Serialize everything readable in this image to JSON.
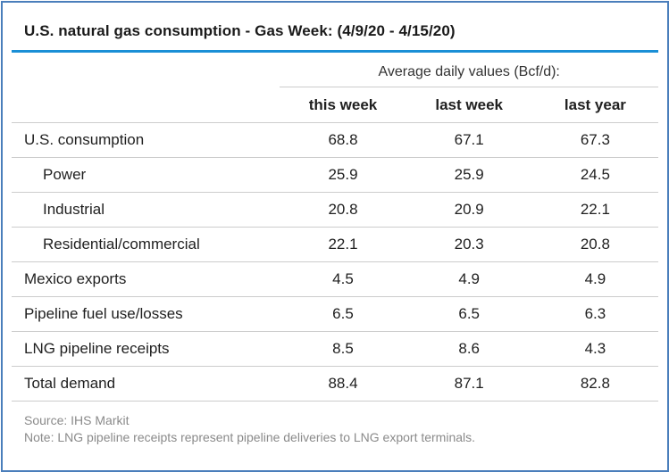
{
  "title": "U.S. natural gas consumption - Gas Week: (4/9/20 - 4/15/20)",
  "group_header": "Average daily values (Bcf/d):",
  "columns": [
    "this week",
    "last week",
    "last year"
  ],
  "rows": [
    {
      "label": "U.S. consumption",
      "values": [
        "68.8",
        "67.1",
        "67.3"
      ]
    },
    {
      "label": "Power",
      "values": [
        "25.9",
        "25.9",
        "24.5"
      ]
    },
    {
      "label": "Industrial",
      "values": [
        "20.8",
        "20.9",
        "22.1"
      ]
    },
    {
      "label": "Residential/commercial",
      "values": [
        "22.1",
        "20.3",
        "20.8"
      ]
    },
    {
      "label": "Mexico exports",
      "values": [
        "4.5",
        "4.9",
        "4.9"
      ]
    },
    {
      "label": "Pipeline fuel use/losses",
      "values": [
        "6.5",
        "6.5",
        "6.3"
      ]
    },
    {
      "label": "LNG pipeline receipts",
      "values": [
        "8.5",
        "8.6",
        "4.3"
      ]
    },
    {
      "label": "Total demand",
      "values": [
        "88.4",
        "87.1",
        "82.8"
      ]
    }
  ],
  "source": "Source: IHS Markit",
  "note": "Note: LNG pipeline receipts represent pipeline deliveries to LNG export terminals.",
  "colors": {
    "border": "#4a7ebb",
    "accent_rule": "#1a8fd6",
    "grid": "#cccccc",
    "note_text": "#8a8a8a"
  }
}
